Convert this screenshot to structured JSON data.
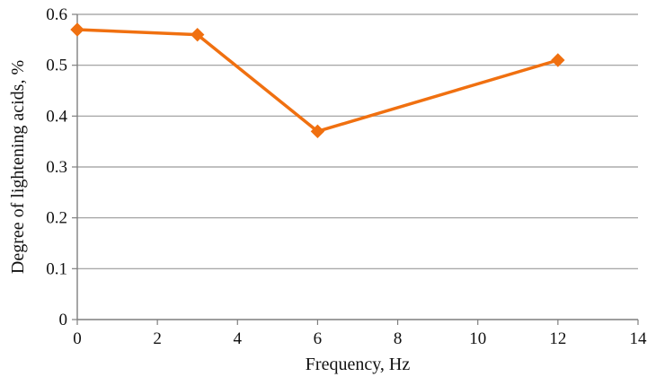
{
  "chart_data": {
    "type": "line",
    "title": "",
    "xlabel": "Frequency, Hz",
    "ylabel": "Degree of lightening acids, %",
    "xlim": [
      0,
      14
    ],
    "ylim": [
      0,
      0.6
    ],
    "x_ticks": [
      0,
      2,
      4,
      6,
      8,
      10,
      12,
      14
    ],
    "y_ticks": [
      0,
      0.1,
      0.2,
      0.3,
      0.4,
      0.5,
      0.6
    ],
    "x_tick_labels": [
      "0",
      "2",
      "4",
      "6",
      "8",
      "10",
      "12",
      "14"
    ],
    "y_tick_labels": [
      "0",
      "0.1",
      "0.2",
      "0.3",
      "0.4",
      "0.5",
      "0.6"
    ],
    "grid": "horizontal",
    "legend": "none",
    "series": [
      {
        "x": [
          0,
          3,
          6,
          12
        ],
        "y": [
          0.57,
          0.56,
          0.37,
          0.51
        ],
        "color": "#f07010",
        "marker": "diamond"
      }
    ],
    "colors": {
      "line": "#f07010",
      "grid": "#9a9a9a",
      "axis": "#7f7f7f",
      "text": "#111111"
    }
  }
}
